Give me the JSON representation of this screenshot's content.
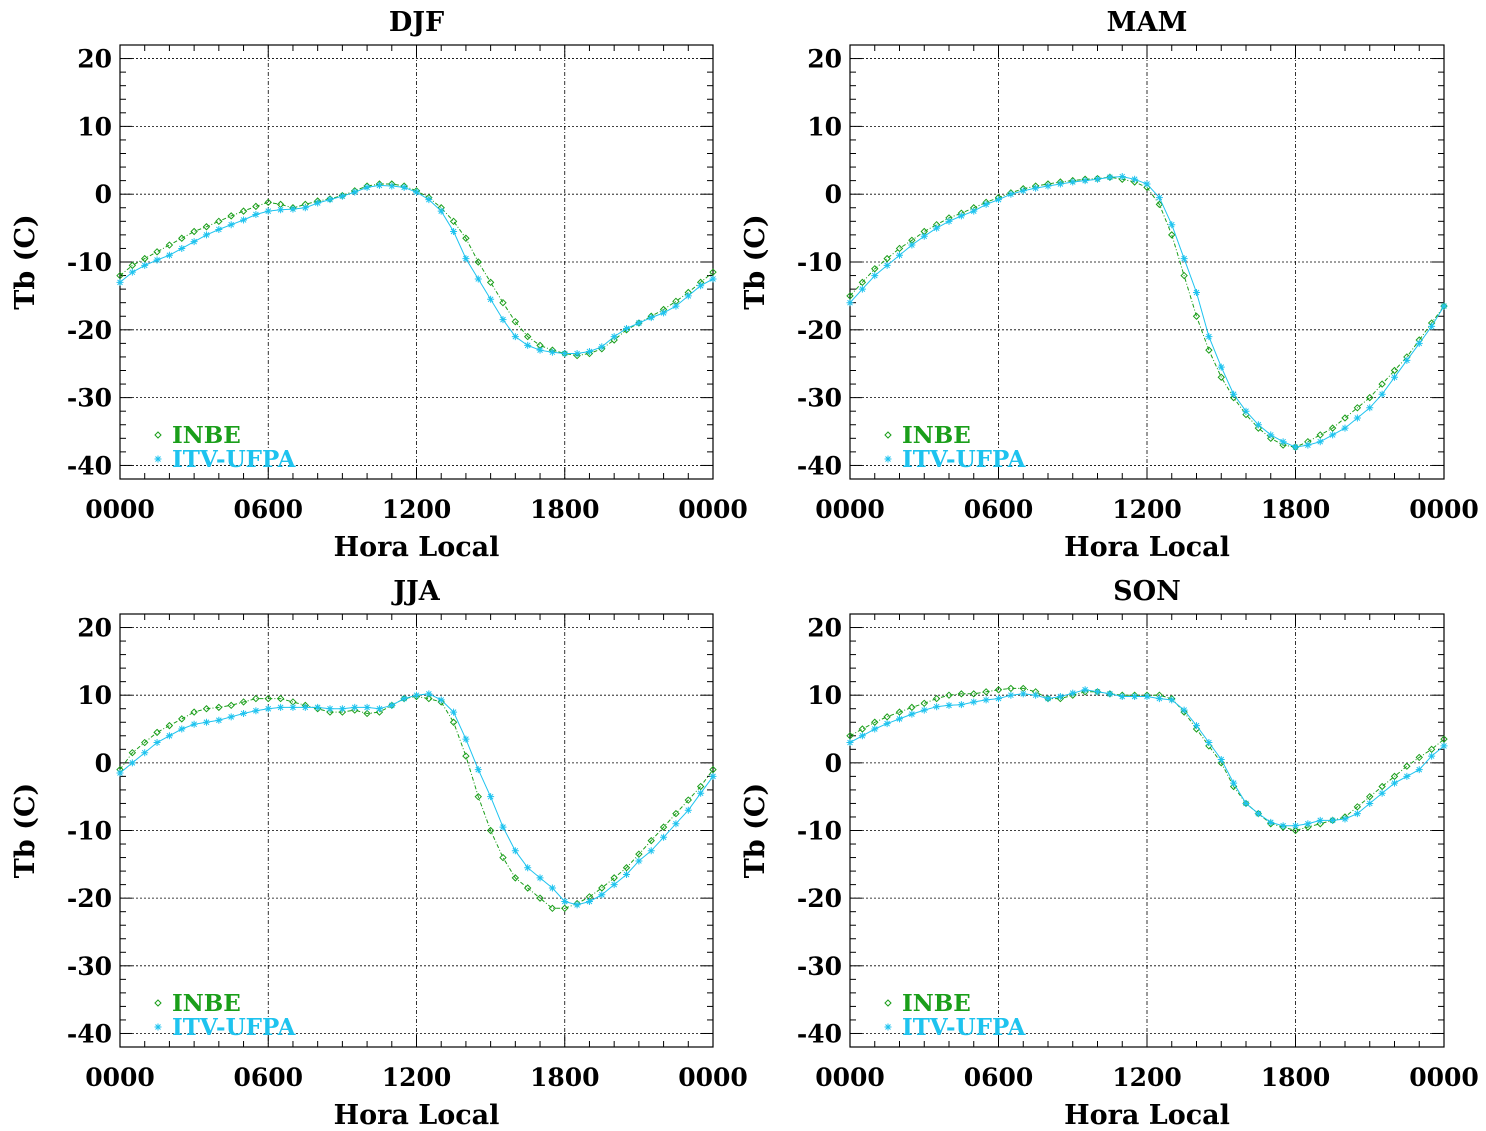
{
  "colors": {
    "inbe": "#1a9e1a",
    "itv": "#1ec3ef",
    "axis": "#000000",
    "grid": "#000000"
  },
  "chart_data": [
    {
      "type": "line",
      "title": "DJF",
      "xlabel": "Hora Local",
      "ylabel": "Tb (C)",
      "xlim": [
        0,
        24
      ],
      "ylim": [
        -42,
        22
      ],
      "xticks": [
        0,
        6,
        12,
        18,
        24
      ],
      "xtick_labels": [
        "0000",
        "0600",
        "1200",
        "1800",
        "0000"
      ],
      "yticks": [
        -40,
        -30,
        -20,
        -10,
        0,
        10,
        20
      ],
      "ytick_labels": [
        "-40",
        "-30",
        "-20",
        "-10",
        "0",
        "10",
        "20"
      ],
      "grid": true,
      "legend_position": "bottom-left",
      "series": [
        {
          "name": "INBE",
          "marker": "diamond",
          "x": [
            0,
            0.5,
            1,
            1.5,
            2,
            2.5,
            3,
            3.5,
            4,
            4.5,
            5,
            5.5,
            6,
            6.5,
            7,
            7.5,
            8,
            8.5,
            9,
            9.5,
            10,
            10.5,
            11,
            11.5,
            12,
            12.5,
            13,
            13.5,
            14,
            14.5,
            15,
            15.5,
            16,
            16.5,
            17,
            17.5,
            18,
            18.5,
            19,
            19.5,
            20,
            20.5,
            21,
            21.5,
            22,
            22.5,
            23,
            23.5,
            24
          ],
          "y": [
            -12,
            -10.5,
            -9.5,
            -8.5,
            -7.5,
            -6.5,
            -5.5,
            -4.8,
            -4,
            -3.2,
            -2.5,
            -1.8,
            -1.2,
            -1.5,
            -2,
            -1.5,
            -1,
            -0.7,
            -0.2,
            0.5,
            1.2,
            1.5,
            1.5,
            1.2,
            0.5,
            -0.5,
            -2,
            -4,
            -6.5,
            -10,
            -13,
            -16,
            -18.8,
            -21,
            -22.3,
            -23,
            -23.5,
            -23.8,
            -23.5,
            -22.8,
            -21.5,
            -20,
            -19,
            -18,
            -17,
            -15.8,
            -14.5,
            -13,
            -11.5
          ]
        },
        {
          "name": "ITV-UFPA",
          "marker": "asterisk",
          "x": [
            0,
            0.5,
            1,
            1.5,
            2,
            2.5,
            3,
            3.5,
            4,
            4.5,
            5,
            5.5,
            6,
            6.5,
            7,
            7.5,
            8,
            8.5,
            9,
            9.5,
            10,
            10.5,
            11,
            11.5,
            12,
            12.5,
            13,
            13.5,
            14,
            14.5,
            15,
            15.5,
            16,
            16.5,
            17,
            17.5,
            18,
            18.5,
            19,
            19.5,
            20,
            20.5,
            21,
            21.5,
            22,
            22.5,
            23,
            23.5,
            24
          ],
          "y": [
            -13,
            -11.5,
            -10.5,
            -9.7,
            -9,
            -8,
            -7,
            -6,
            -5.2,
            -4.5,
            -3.8,
            -3,
            -2.5,
            -2.3,
            -2.2,
            -2,
            -1.3,
            -0.8,
            -0.3,
            0.3,
            1,
            1.3,
            1.2,
            1,
            0.3,
            -0.8,
            -2.5,
            -5.5,
            -9.5,
            -12.5,
            -15.5,
            -18.5,
            -21,
            -22.3,
            -23,
            -23.3,
            -23.5,
            -23.5,
            -23.2,
            -22.5,
            -21,
            -19.8,
            -19,
            -18.2,
            -17.5,
            -16.5,
            -15,
            -13.5,
            -12.5
          ]
        }
      ]
    },
    {
      "type": "line",
      "title": "MAM",
      "xlabel": "Hora Local",
      "ylabel": "Tb (C)",
      "xlim": [
        0,
        24
      ],
      "ylim": [
        -42,
        22
      ],
      "xticks": [
        0,
        6,
        12,
        18,
        24
      ],
      "xtick_labels": [
        "0000",
        "0600",
        "1200",
        "1800",
        "0000"
      ],
      "yticks": [
        -40,
        -30,
        -20,
        -10,
        0,
        10,
        20
      ],
      "ytick_labels": [
        "-40",
        "-30",
        "-20",
        "-10",
        "0",
        "10",
        "20"
      ],
      "grid": true,
      "legend_position": "bottom-left",
      "series": [
        {
          "name": "INBE",
          "marker": "diamond",
          "x": [
            0,
            0.5,
            1,
            1.5,
            2,
            2.5,
            3,
            3.5,
            4,
            4.5,
            5,
            5.5,
            6,
            6.5,
            7,
            7.5,
            8,
            8.5,
            9,
            9.5,
            10,
            10.5,
            11,
            11.5,
            12,
            12.5,
            13,
            13.5,
            14,
            14.5,
            15,
            15.5,
            16,
            16.5,
            17,
            17.5,
            18,
            18.5,
            19,
            19.5,
            20,
            20.5,
            21,
            21.5,
            22,
            22.5,
            23,
            23.5,
            24
          ],
          "y": [
            -15,
            -13,
            -11,
            -9.5,
            -8,
            -6.8,
            -5.5,
            -4.5,
            -3.5,
            -2.8,
            -2,
            -1.2,
            -0.5,
            0.2,
            0.8,
            1.2,
            1.5,
            1.8,
            2,
            2.2,
            2.3,
            2.5,
            2.2,
            1.8,
            1,
            -1.5,
            -6,
            -12,
            -18,
            -23,
            -27,
            -30,
            -32.5,
            -34.5,
            -36,
            -37,
            -37.3,
            -36.5,
            -35.5,
            -34.5,
            -33,
            -31.5,
            -30,
            -28,
            -26,
            -24,
            -21.5,
            -19,
            -16.5
          ]
        },
        {
          "name": "ITV-UFPA",
          "marker": "asterisk",
          "x": [
            0,
            0.5,
            1,
            1.5,
            2,
            2.5,
            3,
            3.5,
            4,
            4.5,
            5,
            5.5,
            6,
            6.5,
            7,
            7.5,
            8,
            8.5,
            9,
            9.5,
            10,
            10.5,
            11,
            11.5,
            12,
            12.5,
            13,
            13.5,
            14,
            14.5,
            15,
            15.5,
            16,
            16.5,
            17,
            17.5,
            18,
            18.5,
            19,
            19.5,
            20,
            20.5,
            21,
            21.5,
            22,
            22.5,
            23,
            23.5,
            24
          ],
          "y": [
            -16,
            -14,
            -12,
            -10.5,
            -9,
            -7.5,
            -6.2,
            -5,
            -4,
            -3.2,
            -2.5,
            -1.5,
            -0.8,
            0,
            0.5,
            0.9,
            1.2,
            1.5,
            1.8,
            2,
            2.2,
            2.5,
            2.6,
            2.2,
            1.5,
            -0.5,
            -4.5,
            -9.5,
            -14.5,
            -21,
            -25.5,
            -29.5,
            -32,
            -34,
            -35.5,
            -36.5,
            -37.3,
            -37,
            -36.5,
            -35.5,
            -34.5,
            -33,
            -31.5,
            -29.5,
            -27,
            -24.5,
            -22,
            -19.5,
            -16.5
          ]
        }
      ]
    },
    {
      "type": "line",
      "title": "JJA",
      "xlabel": "Hora Local",
      "ylabel": "Tb (C)",
      "xlim": [
        0,
        24
      ],
      "ylim": [
        -42,
        22
      ],
      "xticks": [
        0,
        6,
        12,
        18,
        24
      ],
      "xtick_labels": [
        "0000",
        "0600",
        "1200",
        "1800",
        "0000"
      ],
      "yticks": [
        -40,
        -30,
        -20,
        -10,
        0,
        10,
        20
      ],
      "ytick_labels": [
        "-40",
        "-30",
        "-20",
        "-10",
        "0",
        "10",
        "20"
      ],
      "grid": true,
      "legend_position": "bottom-left",
      "series": [
        {
          "name": "INBE",
          "marker": "diamond",
          "x": [
            0,
            0.5,
            1,
            1.5,
            2,
            2.5,
            3,
            3.5,
            4,
            4.5,
            5,
            5.5,
            6,
            6.5,
            7,
            7.5,
            8,
            8.5,
            9,
            9.5,
            10,
            10.5,
            11,
            11.5,
            12,
            12.5,
            13,
            13.5,
            14,
            14.5,
            15,
            15.5,
            16,
            16.5,
            17,
            17.5,
            18,
            18.5,
            19,
            19.5,
            20,
            20.5,
            21,
            21.5,
            22,
            22.5,
            23,
            23.5,
            24
          ],
          "y": [
            -1,
            1.5,
            3,
            4.5,
            5.5,
            6.5,
            7.5,
            8,
            8.2,
            8.5,
            9,
            9.5,
            9.5,
            9.5,
            9,
            8.5,
            8,
            7.5,
            7.5,
            7.8,
            7.3,
            7.5,
            8.5,
            9.5,
            9.8,
            9.5,
            9,
            6,
            1,
            -5,
            -10,
            -14,
            -17,
            -18.5,
            -20,
            -21.5,
            -21.5,
            -20.8,
            -19.8,
            -18.5,
            -17,
            -15.5,
            -13.5,
            -11.5,
            -9.5,
            -7.5,
            -5.5,
            -3.5,
            -1
          ]
        },
        {
          "name": "ITV-UFPA",
          "marker": "asterisk",
          "x": [
            0,
            0.5,
            1,
            1.5,
            2,
            2.5,
            3,
            3.5,
            4,
            4.5,
            5,
            5.5,
            6,
            6.5,
            7,
            7.5,
            8,
            8.5,
            9,
            9.5,
            10,
            10.5,
            11,
            11.5,
            12,
            12.5,
            13,
            13.5,
            14,
            14.5,
            15,
            15.5,
            16,
            16.5,
            17,
            17.5,
            18,
            18.5,
            19,
            19.5,
            20,
            20.5,
            21,
            21.5,
            22,
            22.5,
            23,
            23.5,
            24
          ],
          "y": [
            -1.5,
            0,
            1.5,
            3,
            4,
            5,
            5.7,
            6,
            6.3,
            6.8,
            7.3,
            7.7,
            8,
            8.2,
            8.2,
            8.2,
            8.2,
            8,
            8,
            8.2,
            8.2,
            8,
            8.5,
            9.5,
            10,
            10.2,
            9.3,
            7.5,
            3.5,
            -1,
            -5,
            -9.5,
            -13,
            -15.5,
            -17,
            -18.5,
            -20.5,
            -21,
            -20.5,
            -19.5,
            -18,
            -16.5,
            -14.5,
            -13,
            -11,
            -9,
            -7,
            -4.5,
            -2
          ]
        }
      ]
    },
    {
      "type": "line",
      "title": "SON",
      "xlabel": "Hora Local",
      "ylabel": "Tb (C)",
      "xlim": [
        0,
        24
      ],
      "ylim": [
        -42,
        22
      ],
      "xticks": [
        0,
        6,
        12,
        18,
        24
      ],
      "xtick_labels": [
        "0000",
        "0600",
        "1200",
        "1800",
        "0000"
      ],
      "yticks": [
        -40,
        -30,
        -20,
        -10,
        0,
        10,
        20
      ],
      "ytick_labels": [
        "-40",
        "-30",
        "-20",
        "-10",
        "0",
        "10",
        "20"
      ],
      "grid": true,
      "legend_position": "bottom-left",
      "series": [
        {
          "name": "INBE",
          "marker": "diamond",
          "x": [
            0,
            0.5,
            1,
            1.5,
            2,
            2.5,
            3,
            3.5,
            4,
            4.5,
            5,
            5.5,
            6,
            6.5,
            7,
            7.5,
            8,
            8.5,
            9,
            9.5,
            10,
            10.5,
            11,
            11.5,
            12,
            12.5,
            13,
            13.5,
            14,
            14.5,
            15,
            15.5,
            16,
            16.5,
            17,
            17.5,
            18,
            18.5,
            19,
            19.5,
            20,
            20.5,
            21,
            21.5,
            22,
            22.5,
            23,
            23.5,
            24
          ],
          "y": [
            4,
            5,
            6,
            6.8,
            7.5,
            8.2,
            8.8,
            9.5,
            10,
            10.2,
            10.2,
            10.5,
            10.8,
            11,
            11,
            10.5,
            9.5,
            9.5,
            10,
            10.5,
            10.5,
            10.2,
            10,
            10,
            10,
            10,
            9.5,
            7.5,
            5,
            2.5,
            0,
            -3.5,
            -6,
            -7.5,
            -9,
            -9.5,
            -10,
            -9.5,
            -9,
            -8.5,
            -8,
            -6.5,
            -5,
            -3.5,
            -2,
            -0.5,
            0.8,
            2,
            3.5
          ]
        },
        {
          "name": "ITV-UFPA",
          "marker": "asterisk",
          "x": [
            0,
            0.5,
            1,
            1.5,
            2,
            2.5,
            3,
            3.5,
            4,
            4.5,
            5,
            5.5,
            6,
            6.5,
            7,
            7.5,
            8,
            8.5,
            9,
            9.5,
            10,
            10.5,
            11,
            11.5,
            12,
            12.5,
            13,
            13.5,
            14,
            14.5,
            15,
            15.5,
            16,
            16.5,
            17,
            17.5,
            18,
            18.5,
            19,
            19.5,
            20,
            20.5,
            21,
            21.5,
            22,
            22.5,
            23,
            23.5,
            24
          ],
          "y": [
            3,
            4,
            5,
            5.8,
            6.5,
            7.2,
            7.8,
            8.3,
            8.5,
            8.6,
            9,
            9.3,
            9.5,
            10,
            10.2,
            10,
            9.5,
            9.8,
            10.3,
            10.8,
            10.5,
            10.2,
            9.8,
            9.8,
            9.8,
            9.5,
            9.3,
            7.8,
            5.5,
            3,
            0.5,
            -3,
            -6,
            -7.5,
            -8.8,
            -9.3,
            -9.3,
            -9,
            -8.5,
            -8.5,
            -8.3,
            -7.5,
            -6,
            -4.5,
            -3,
            -2,
            -1,
            1,
            2.5
          ]
        }
      ]
    }
  ]
}
